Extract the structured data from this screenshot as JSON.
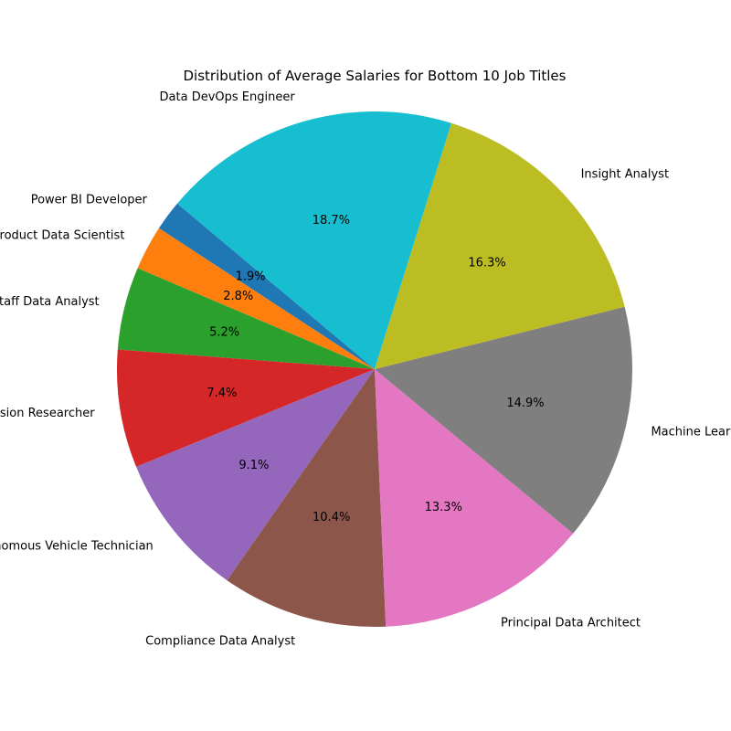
{
  "chart_data": {
    "type": "pie",
    "title": "Distribution of Average Salaries for Bottom 10 Job Titles",
    "start_angle_deg": 140,
    "direction": "counterclockwise",
    "slices": [
      {
        "label": "Power BI Developer",
        "percent": 1.9,
        "pct_label": "1.9%",
        "color": "#1f77b4"
      },
      {
        "label": "Product Data Scientist",
        "percent": 2.8,
        "pct_label": "2.8%",
        "color": "#ff7f0e"
      },
      {
        "label": "Staff Data Analyst",
        "percent": 5.2,
        "pct_label": "5.2%",
        "color": "#2ca02c"
      },
      {
        "label": "Computer Vision Researcher",
        "percent": 7.4,
        "pct_label": "7.4%",
        "color": "#d62728"
      },
      {
        "label": "Autonomous Vehicle Technician",
        "percent": 9.1,
        "pct_label": "9.1%",
        "color": "#9467bd"
      },
      {
        "label": "Compliance Data Analyst",
        "percent": 10.4,
        "pct_label": "10.4%",
        "color": "#8c564b"
      },
      {
        "label": "Principal Data Architect",
        "percent": 13.3,
        "pct_label": "13.3%",
        "color": "#e377c2"
      },
      {
        "label": "Machine Learning Developer",
        "percent": 14.9,
        "pct_label": "14.9%",
        "color": "#7f7f7f"
      },
      {
        "label": "Insight Analyst",
        "percent": 16.3,
        "pct_label": "16.3%",
        "color": "#bcbd22"
      },
      {
        "label": "Data DevOps Engineer",
        "percent": 18.7,
        "pct_label": "18.7%",
        "color": "#17becf"
      }
    ]
  }
}
